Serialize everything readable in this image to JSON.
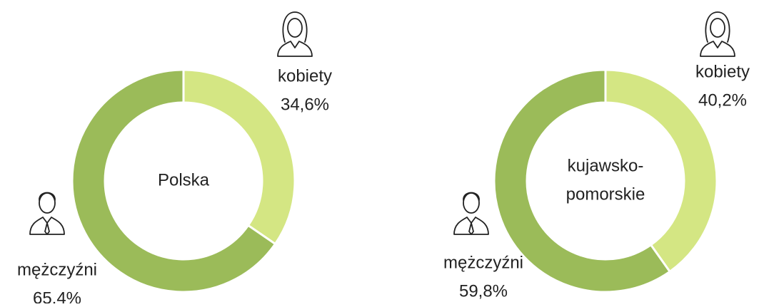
{
  "chart_data": [
    {
      "type": "donut",
      "center_label": [
        "Polska"
      ],
      "categories": [
        "kobiety",
        "mężczyźni"
      ],
      "values": [
        34.6,
        65.4
      ],
      "value_labels": [
        "34,6%",
        "65,4%"
      ],
      "colors": [
        "#d4e683",
        "#9bbb59"
      ]
    },
    {
      "type": "donut",
      "center_label": [
        "kujawsko-",
        "pomorskie"
      ],
      "categories": [
        "kobiety",
        "mężczyźni"
      ],
      "values": [
        40.2,
        59.8
      ],
      "value_labels": [
        "40,2%",
        "59,8%"
      ],
      "colors": [
        "#d4e683",
        "#9bbb59"
      ]
    }
  ]
}
